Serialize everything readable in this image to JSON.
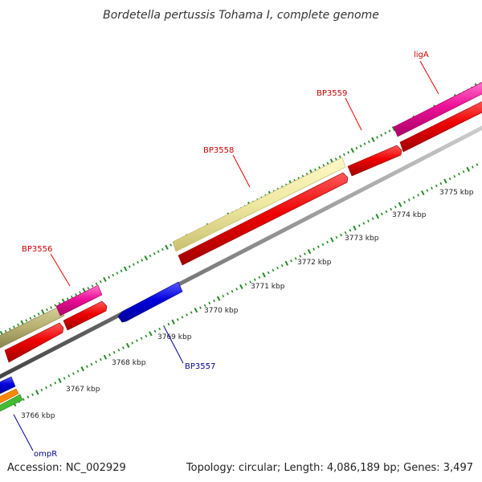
{
  "title": "Bordetella pertussis Tohama I, complete genome",
  "footer": {
    "accession": "Accession: NC_002929",
    "summary": "Topology: circular; Length: 4,086,189 bp; Genes: 3,497"
  },
  "scale_labels": [
    "3766 kbp",
    "3767 kbp",
    "3768 kbp",
    "3769 kbp",
    "3770 kbp",
    "3771 kbp",
    "3772 kbp",
    "3773 kbp",
    "3774 kbp",
    "3775 kbp"
  ],
  "gene_labels": [
    {
      "text": "ligA",
      "color": "#cc0000"
    },
    {
      "text": "BP3559",
      "color": "#cc0000"
    },
    {
      "text": "BP3558",
      "color": "#cc0000"
    },
    {
      "text": "BP3556",
      "color": "#cc0000"
    },
    {
      "text": "BP3557",
      "color": "#000099"
    },
    {
      "text": "ompR",
      "color": "#000099"
    }
  ],
  "colors": {
    "cds": "#ee0000",
    "gene": "#ee1199",
    "misc_feature": "#eee8a0",
    "misc_feature_dark": "#b8b070",
    "reverse_cds": "#0000dd",
    "backbone": "#888888",
    "tick": "#228b22",
    "orange": "#ff8800",
    "green": "#44bb33"
  }
}
